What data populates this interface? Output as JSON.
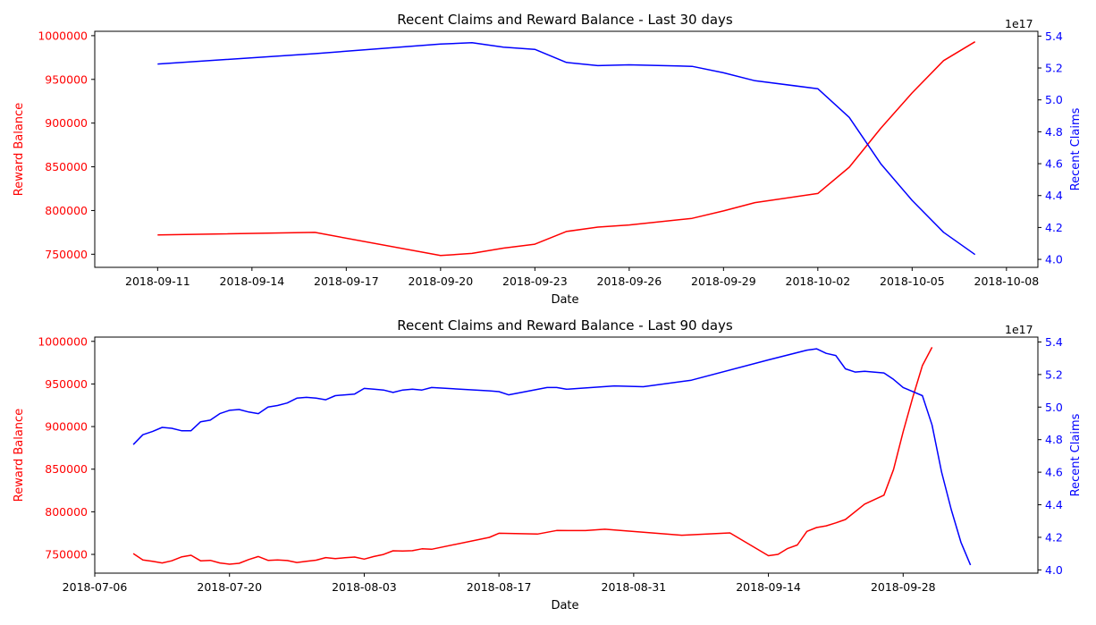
{
  "chart_data": [
    {
      "type": "line",
      "title": "Recent Claims and Reward Balance - Last 30 days",
      "xlabel": "Date",
      "ylabel": "Reward Balance",
      "y2label": "Recent Claims",
      "y2_offset_text": "1e17",
      "xlim": [
        "2018-09-09",
        "2018-10-09"
      ],
      "ylim": [
        735000,
        1005000
      ],
      "y2lim": [
        3.95e+17,
        5.43e+17
      ],
      "xticks": [
        "2018-09-11",
        "2018-09-14",
        "2018-09-17",
        "2018-09-20",
        "2018-09-23",
        "2018-09-26",
        "2018-09-29",
        "2018-10-02",
        "2018-10-05",
        "2018-10-08"
      ],
      "yticks": [
        750000,
        800000,
        850000,
        900000,
        950000,
        1000000
      ],
      "y2ticks": [
        4.0,
        4.2,
        4.4,
        4.6,
        4.8,
        5.0,
        5.2,
        5.4
      ],
      "grid": false,
      "series": [
        {
          "name": "Reward Balance",
          "axis": "left",
          "color": "#ff0000",
          "points": [
            [
              "2018-09-11",
              772000
            ],
            [
              "2018-09-16",
              775000
            ],
            [
              "2018-09-20",
              748500
            ],
            [
              "2018-09-21",
              751000
            ],
            [
              "2018-09-22",
              757000
            ],
            [
              "2018-09-23",
              761500
            ],
            [
              "2018-09-24",
              776000
            ],
            [
              "2018-09-25",
              781000
            ],
            [
              "2018-09-26",
              783500
            ],
            [
              "2018-09-28",
              791000
            ],
            [
              "2018-09-29",
              799500
            ],
            [
              "2018-09-30",
              809000
            ],
            [
              "2018-10-02",
              819500
            ],
            [
              "2018-10-03",
              849500
            ],
            [
              "2018-10-04",
              894000
            ],
            [
              "2018-10-05",
              934500
            ],
            [
              "2018-10-06",
              971500
            ],
            [
              "2018-10-07",
              993000
            ]
          ]
        },
        {
          "name": "Recent Claims",
          "axis": "right",
          "color": "#0000ff",
          "points": [
            [
              "2018-09-11",
              5.225e+17
            ],
            [
              "2018-09-16",
              5.29e+17
            ],
            [
              "2018-09-20",
              5.35e+17
            ],
            [
              "2018-09-21",
              5.358e+17
            ],
            [
              "2018-09-22",
              5.33e+17
            ],
            [
              "2018-09-23",
              5.317e+17
            ],
            [
              "2018-09-24",
              5.235e+17
            ],
            [
              "2018-09-25",
              5.215e+17
            ],
            [
              "2018-09-26",
              5.22e+17
            ],
            [
              "2018-09-28",
              5.21e+17
            ],
            [
              "2018-09-29",
              5.17e+17
            ],
            [
              "2018-09-30",
              5.12e+17
            ],
            [
              "2018-10-02",
              5.07e+17
            ],
            [
              "2018-10-03",
              4.89e+17
            ],
            [
              "2018-10-04",
              4.6e+17
            ],
            [
              "2018-10-05",
              4.37e+17
            ],
            [
              "2018-10-06",
              4.17e+17
            ],
            [
              "2018-10-07",
              4.03e+17
            ]
          ]
        }
      ]
    },
    {
      "type": "line",
      "title": "Recent Claims and Reward Balance - Last 90 days",
      "xlabel": "Date",
      "ylabel": "Reward Balance",
      "y2label": "Recent Claims",
      "y2_offset_text": "1e17",
      "xlim": [
        "2018-07-06",
        "2018-10-12"
      ],
      "ylim": [
        728000,
        1005000
      ],
      "y2lim": [
        3.98e+17,
        5.43e+17
      ],
      "xticks": [
        "2018-07-06",
        "2018-07-20",
        "2018-08-03",
        "2018-08-17",
        "2018-08-31",
        "2018-09-14",
        "2018-09-28"
      ],
      "yticks": [
        750000,
        800000,
        850000,
        900000,
        950000,
        1000000
      ],
      "y2ticks": [
        4.0,
        4.2,
        4.4,
        4.6,
        4.8,
        5.0,
        5.2,
        5.4
      ],
      "grid": false,
      "series": [
        {
          "name": "Reward Balance",
          "axis": "left",
          "color": "#ff0000",
          "points": [
            [
              "2018-07-10",
              751000
            ],
            [
              "2018-07-11",
              743500
            ],
            [
              "2018-07-12",
              742000
            ],
            [
              "2018-07-13",
              740000
            ],
            [
              "2018-07-14",
              742500
            ],
            [
              "2018-07-15",
              747000
            ],
            [
              "2018-07-16",
              749000
            ],
            [
              "2018-07-17",
              742500
            ],
            [
              "2018-07-18",
              743000
            ],
            [
              "2018-07-19",
              740000
            ],
            [
              "2018-07-20",
              738500
            ],
            [
              "2018-07-21",
              739500
            ],
            [
              "2018-07-22",
              744000
            ],
            [
              "2018-07-23",
              747500
            ],
            [
              "2018-07-24",
              743000
            ],
            [
              "2018-07-25",
              743500
            ],
            [
              "2018-07-26",
              742800
            ],
            [
              "2018-07-27",
              740500
            ],
            [
              "2018-07-28",
              741800
            ],
            [
              "2018-07-29",
              743200
            ],
            [
              "2018-07-30",
              746300
            ],
            [
              "2018-07-31",
              745000
            ],
            [
              "2018-08-01",
              746000
            ],
            [
              "2018-08-02",
              746900
            ],
            [
              "2018-08-03",
              744500
            ],
            [
              "2018-08-04",
              747500
            ],
            [
              "2018-08-05",
              749900
            ],
            [
              "2018-08-06",
              754200
            ],
            [
              "2018-08-07",
              754000
            ],
            [
              "2018-08-08",
              754300
            ],
            [
              "2018-08-09",
              756500
            ],
            [
              "2018-08-10",
              756000
            ],
            [
              "2018-08-16",
              770000
            ],
            [
              "2018-08-17",
              774800
            ],
            [
              "2018-08-21",
              773800
            ],
            [
              "2018-08-23",
              778000
            ],
            [
              "2018-08-26",
              777900
            ],
            [
              "2018-08-28",
              779500
            ],
            [
              "2018-09-05",
              772500
            ],
            [
              "2018-09-10",
              775200
            ],
            [
              "2018-09-14",
              748500
            ],
            [
              "2018-09-15",
              750000
            ],
            [
              "2018-09-16",
              757000
            ],
            [
              "2018-09-17",
              761000
            ],
            [
              "2018-09-18",
              777000
            ],
            [
              "2018-09-19",
              781500
            ],
            [
              "2018-09-20",
              783500
            ],
            [
              "2018-09-21",
              787000
            ],
            [
              "2018-09-22",
              791000
            ],
            [
              "2018-09-24",
              809000
            ],
            [
              "2018-09-26",
              819500
            ],
            [
              "2018-09-27",
              849500
            ],
            [
              "2018-09-28",
              894000
            ],
            [
              "2018-09-29",
              934500
            ],
            [
              "2018-09-30",
              971500
            ],
            [
              "2018-10-01",
              993000
            ]
          ]
        },
        {
          "name": "Recent Claims",
          "axis": "right",
          "color": "#0000ff",
          "points": [
            [
              "2018-07-10",
              4.77e+17
            ],
            [
              "2018-07-11",
              4.83e+17
            ],
            [
              "2018-07-12",
              4.85e+17
            ],
            [
              "2018-07-13",
              4.875e+17
            ],
            [
              "2018-07-14",
              4.87e+17
            ],
            [
              "2018-07-15",
              4.855e+17
            ],
            [
              "2018-07-16",
              4.855e+17
            ],
            [
              "2018-07-17",
              4.91e+17
            ],
            [
              "2018-07-18",
              4.92e+17
            ],
            [
              "2018-07-19",
              4.96e+17
            ],
            [
              "2018-07-20",
              4.98e+17
            ],
            [
              "2018-07-21",
              4.985e+17
            ],
            [
              "2018-07-22",
              4.97e+17
            ],
            [
              "2018-07-23",
              4.96e+17
            ],
            [
              "2018-07-24",
              5e+17
            ],
            [
              "2018-07-25",
              5.01e+17
            ],
            [
              "2018-07-26",
              5.025e+17
            ],
            [
              "2018-07-27",
              5.055e+17
            ],
            [
              "2018-07-28",
              5.06e+17
            ],
            [
              "2018-07-29",
              5.055e+17
            ],
            [
              "2018-07-30",
              5.045e+17
            ],
            [
              "2018-07-31",
              5.07e+17
            ],
            [
              "2018-08-01",
              5.075e+17
            ],
            [
              "2018-08-02",
              5.08e+17
            ],
            [
              "2018-08-03",
              5.115e+17
            ],
            [
              "2018-08-04",
              5.11e+17
            ],
            [
              "2018-08-05",
              5.105e+17
            ],
            [
              "2018-08-06",
              5.09e+17
            ],
            [
              "2018-08-07",
              5.105e+17
            ],
            [
              "2018-08-08",
              5.11e+17
            ],
            [
              "2018-08-09",
              5.105e+17
            ],
            [
              "2018-08-10",
              5.12e+17
            ],
            [
              "2018-08-16",
              5.1e+17
            ],
            [
              "2018-08-17",
              5.095e+17
            ],
            [
              "2018-08-18",
              5.075e+17
            ],
            [
              "2018-08-22",
              5.12e+17
            ],
            [
              "2018-08-23",
              5.12e+17
            ],
            [
              "2018-08-24",
              5.11e+17
            ],
            [
              "2018-08-29",
              5.13e+17
            ],
            [
              "2018-09-01",
              5.125e+17
            ],
            [
              "2018-09-06",
              5.165e+17
            ],
            [
              "2018-09-14",
              5.29e+17
            ],
            [
              "2018-09-18",
              5.35e+17
            ],
            [
              "2018-09-19",
              5.358e+17
            ],
            [
              "2018-09-20",
              5.33e+17
            ],
            [
              "2018-09-21",
              5.317e+17
            ],
            [
              "2018-09-22",
              5.235e+17
            ],
            [
              "2018-09-23",
              5.215e+17
            ],
            [
              "2018-09-24",
              5.22e+17
            ],
            [
              "2018-09-26",
              5.21e+17
            ],
            [
              "2018-09-27",
              5.17e+17
            ],
            [
              "2018-09-28",
              5.12e+17
            ],
            [
              "2018-09-30",
              5.07e+17
            ],
            [
              "2018-10-01",
              4.89e+17
            ],
            [
              "2018-10-02",
              4.6e+17
            ],
            [
              "2018-10-03",
              4.37e+17
            ],
            [
              "2018-10-04",
              4.17e+17
            ],
            [
              "2018-10-05",
              4.03e+17
            ]
          ]
        }
      ]
    }
  ]
}
